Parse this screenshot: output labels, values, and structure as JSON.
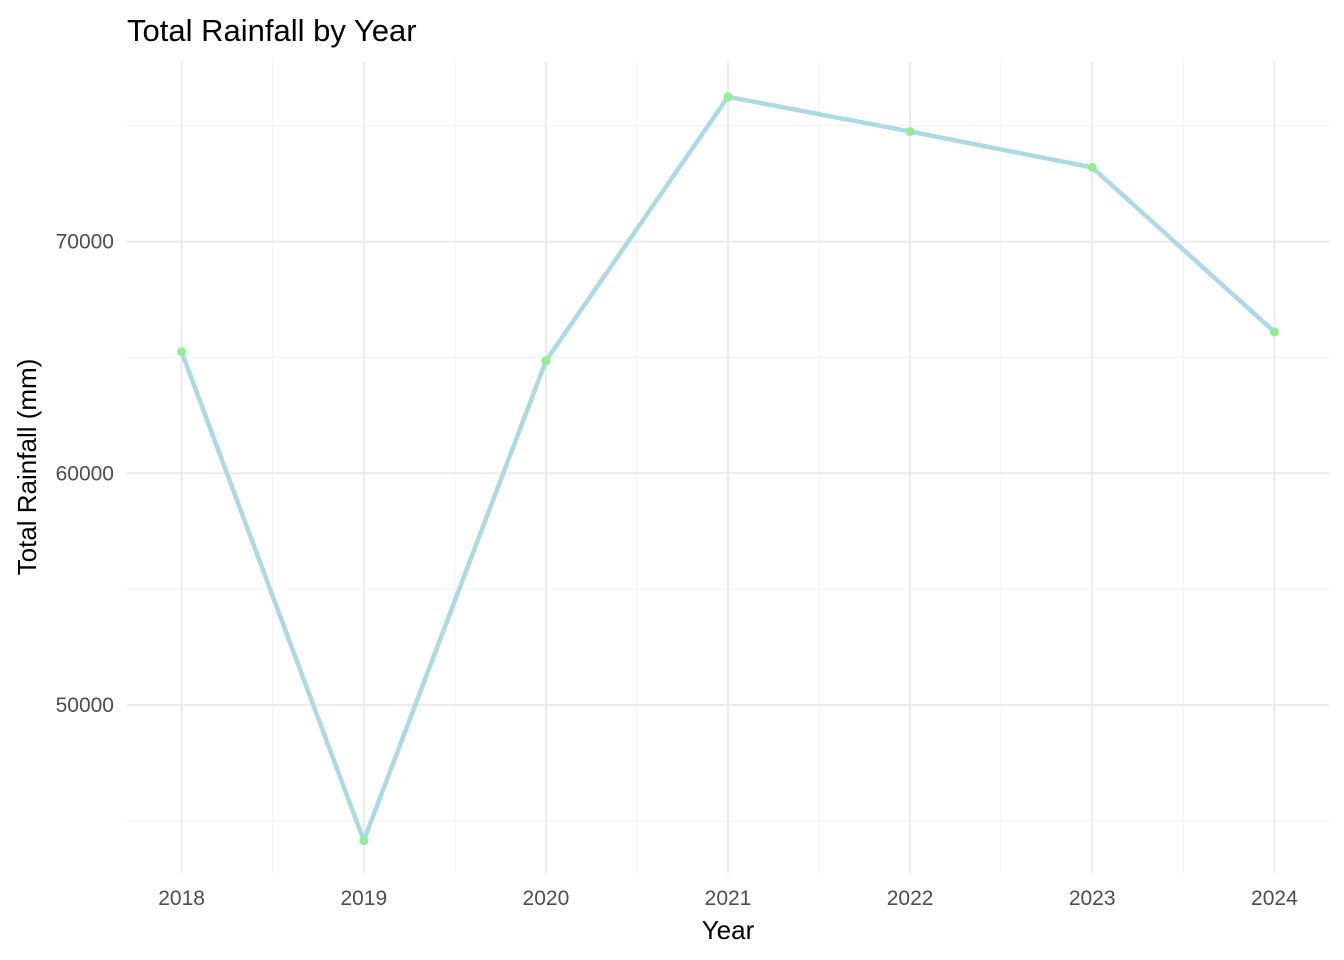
{
  "chart_data": {
    "type": "line",
    "title": "Total Rainfall by Year",
    "xlabel": "Year",
    "ylabel": "Total Rainfall (mm)",
    "x": [
      2018,
      2019,
      2020,
      2021,
      2022,
      2023,
      2024
    ],
    "x_tick_labels": [
      "2018",
      "2019",
      "2020",
      "2021",
      "2022",
      "2023",
      "2024"
    ],
    "y_ticks": [
      50000,
      60000,
      70000
    ],
    "y_tick_labels": [
      "50000",
      "60000",
      "70000"
    ],
    "xlim": [
      2017.7,
      2024.3
    ],
    "ylim": [
      42750,
      77750
    ],
    "grid": true,
    "series": [
      {
        "values": [
          65250,
          44150,
          64850,
          76250,
          74750,
          73200,
          66100
        ],
        "line_color": "#add8e6",
        "point_color": "#90ee90"
      }
    ]
  }
}
